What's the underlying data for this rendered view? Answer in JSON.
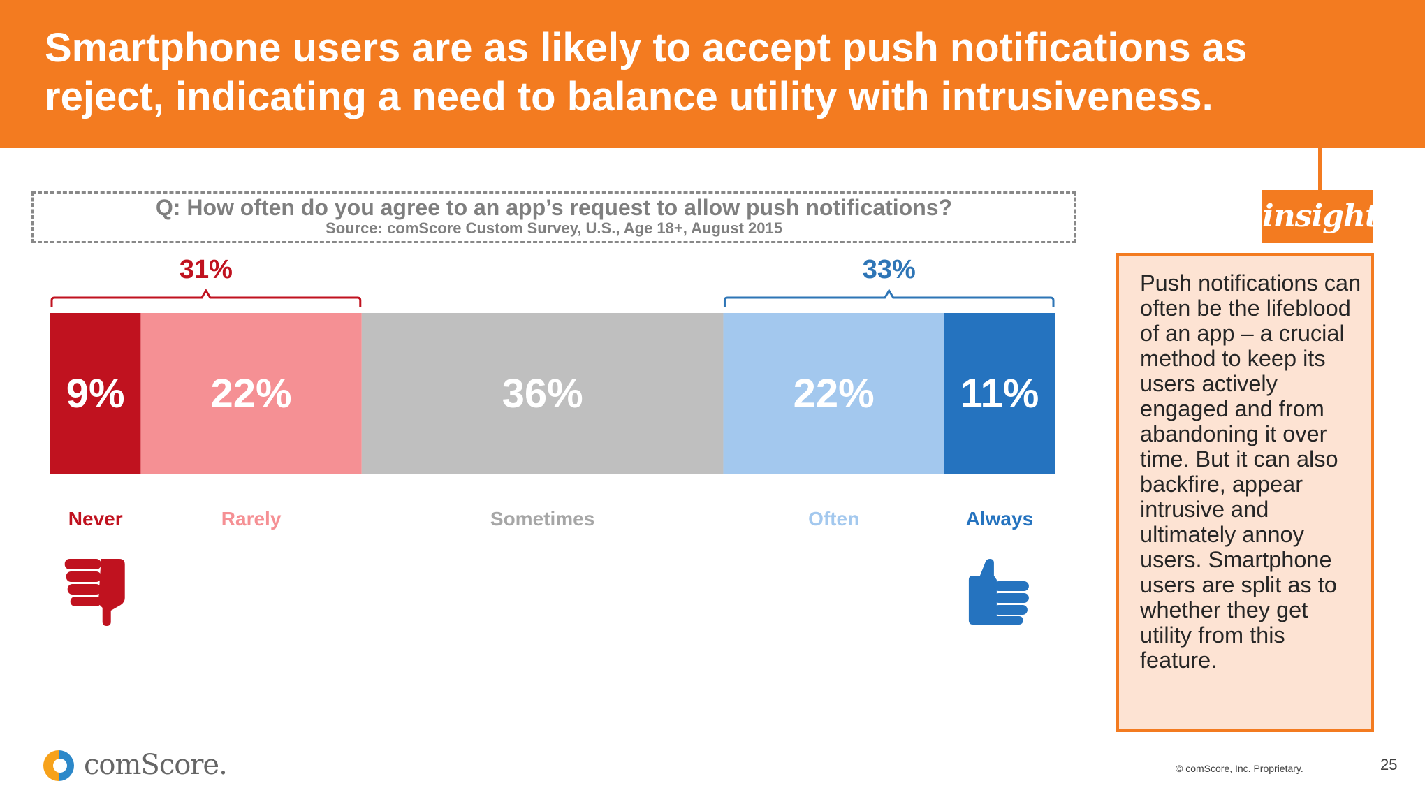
{
  "header": {
    "title": "Smartphone users are as likely to accept push notifications as reject, indicating a need to balance utility with intrusiveness."
  },
  "question": {
    "text": "Q: How often do you agree to an app’s request to allow push notifications?",
    "source": "Source: comScore Custom Survey, U.S., Age 18+, August 2015"
  },
  "chart_data": {
    "type": "bar",
    "orientation": "horizontal-stacked",
    "categories": [
      "Never",
      "Rarely",
      "Sometimes",
      "Often",
      "Always"
    ],
    "values": [
      9,
      22,
      36,
      22,
      11
    ],
    "value_labels": [
      "9%",
      "22%",
      "36%",
      "22%",
      "11%"
    ],
    "colors": [
      "#c0121f",
      "#f59094",
      "#bfbfbf",
      "#a3c8ee",
      "#2573bf"
    ],
    "label_colors": [
      "#c0121f",
      "#f59094",
      "#a6a6a6",
      "#a3c8ee",
      "#2573bf"
    ],
    "brackets": [
      {
        "label": "31%",
        "from": 0,
        "to": 1,
        "color": "#c0121f"
      },
      {
        "label": "33%",
        "from": 3,
        "to": 4,
        "color": "#2e75b6"
      }
    ]
  },
  "icons": {
    "left": "thumbs-down-icon",
    "right": "thumbs-up-icon",
    "left_color": "#c0121f",
    "right_color": "#2573bf"
  },
  "insight": {
    "tag": "insight",
    "text": "Push notifications can often be the lifeblood of an app – a crucial method to keep its users actively engaged and from abandoning it over time. But it can also backfire, appear intrusive and ultimately annoy users. Smartphone users are split as to whether they get utility from this feature."
  },
  "footer": {
    "logo_text": "comScore.",
    "copyright": "© comScore, Inc. Proprietary.",
    "page_number": "25"
  }
}
